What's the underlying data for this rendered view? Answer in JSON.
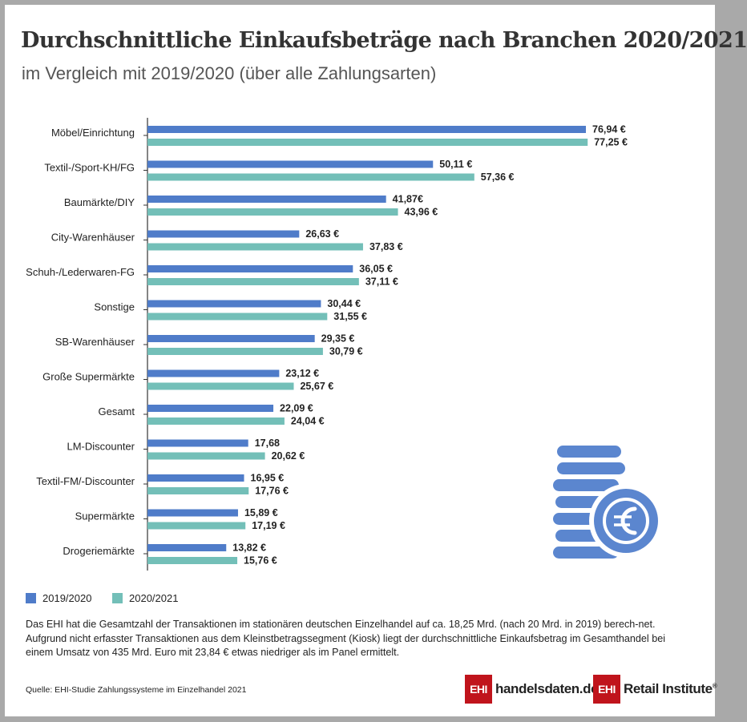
{
  "header": {
    "title": "Durchschnittliche Einkaufsbeträge nach Branchen 2020/2021",
    "subtitle": "im Vergleich mit 2019/2020 (über alle Zahlungsarten)"
  },
  "chart_data": {
    "type": "bar",
    "orientation": "horizontal",
    "unit": "€",
    "categories": [
      "Möbel/Einrichtung",
      "Textil-/Sport-KH/FG",
      "Baumärkte/DIY",
      "City-Warenhäuser",
      "Schuh-/Lederwaren-FG",
      "Sonstige",
      "SB-Warenhäuser",
      "Große Supermärkte",
      "Gesamt",
      "LM-Discounter",
      "Textil-FM/-Discounter",
      "Supermärkte",
      "Drogeriemärkte"
    ],
    "series": [
      {
        "name": "2019/2020",
        "color": "#4f7cc9",
        "values": [
          76.94,
          50.11,
          41.87,
          26.63,
          36.05,
          30.44,
          29.35,
          23.12,
          22.09,
          17.68,
          16.95,
          15.89,
          13.82
        ],
        "labels": [
          "76,94 €",
          "50,11 €",
          "41,87€",
          "26,63 €",
          "36,05 €",
          "30,44 €",
          "29,35 €",
          "23,12 €",
          "22,09 €",
          "17,68",
          "16,95 €",
          "15,89 €",
          "13,82 €"
        ]
      },
      {
        "name": "2020/2021",
        "color": "#73bfb8",
        "values": [
          77.25,
          57.36,
          43.96,
          37.83,
          37.11,
          31.55,
          30.79,
          25.67,
          24.04,
          20.62,
          17.76,
          17.19,
          15.76
        ],
        "labels": [
          "77,25 €",
          "57,36 €",
          "43,96 €",
          "37,83 €",
          "37,11 €",
          "31,55 €",
          "30,79 €",
          "25,67 €",
          "24,04 €",
          "20,62 €",
          "17,76 €",
          "17,19 €",
          "15,76 €"
        ]
      }
    ],
    "grid": false,
    "legend_position": "bottom-left"
  },
  "decoration": {
    "icon": "euro-coin-stack-icon",
    "color": "#5b86cf"
  },
  "footnote": "Das EHI hat die Gesamtzahl der Transaktionen im stationären deutschen Einzelhandel auf ca. 18,25 Mrd. (nach 20 Mrd. in 2019) berech-net. Aufgrund nicht erfasster Transaktionen aus dem Kleinstbetragssegment (Kiosk) liegt der durchschnittliche Einkaufsbetrag im Gesamthandel bei einem Umsatz von 435 Mrd. Euro mit 23,84 € etwas niedriger als im Panel ermittelt.",
  "source": "Quelle: EHI-Studie Zahlungssysteme im Einzelhandel 2021",
  "logos": {
    "handelsdaten_box": "EHI",
    "handelsdaten_text": "handelsdaten.de",
    "retail_box": "EHI",
    "retail_text": "Retail Institute",
    "retail_mark": "®"
  }
}
